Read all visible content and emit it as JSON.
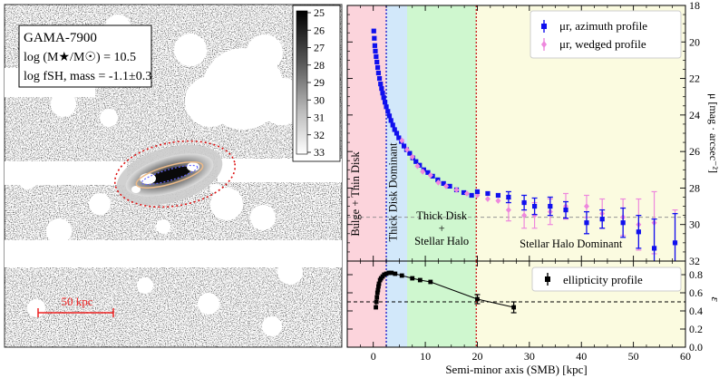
{
  "left_panel": {
    "galaxy_id": "GAMA-7900",
    "mass_label": "log (M★/M☉) = 10.5",
    "fsh_label": "log fSH, mass = -1.1±0.3",
    "scalebar_label": "50 kpc",
    "colorbar_ticks": [
      "25",
      "26",
      "27",
      "28",
      "29",
      "30",
      "31",
      "32",
      "33"
    ]
  },
  "chart_data": [
    {
      "type": "scatter",
      "panel": "surface-brightness-profile",
      "ylabel": "μ [mag · arcsec⁻²]",
      "xlim": [
        -5,
        60
      ],
      "ylim": [
        32,
        18
      ],
      "x_ticks": [
        0,
        10,
        20,
        30,
        40,
        50,
        60
      ],
      "y_ticks": [
        18,
        20,
        22,
        24,
        26,
        28,
        30,
        32
      ],
      "y_tick_labels": [
        "18",
        "20",
        "22",
        "24",
        "26",
        "28",
        "30",
        "32"
      ],
      "legend_position": "top-right",
      "reference_line_y": 29.6,
      "regions": [
        {
          "label": "Bulge + Thin Disk",
          "x0": -5,
          "x1": 2.5,
          "color": "#fcd4dc"
        },
        {
          "label": "Thick Disk Dominant",
          "x0": 2.5,
          "x1": 6.5,
          "color": "#d2e8fa"
        },
        {
          "label": "Thick Disk",
          "label2": "+",
          "label3": "Stellar Halo",
          "x0": 6.5,
          "x1": 19.8,
          "color": "#cff7cf"
        },
        {
          "label": "Stellar Halo Dominant",
          "x0": 19.8,
          "x1": 60,
          "color": "#fbfbe0"
        }
      ],
      "boundaries": [
        {
          "x": 2.5,
          "color": "#2222cc"
        },
        {
          "x": 19.8,
          "color": "#cc2222"
        }
      ],
      "series": [
        {
          "name": "μr, azimuth profile",
          "color": "#1010ee",
          "marker": "square",
          "points": [
            [
              0.1,
              19.4
            ],
            [
              0.2,
              19.8
            ],
            [
              0.3,
              20.2
            ],
            [
              0.4,
              20.5
            ],
            [
              0.55,
              20.8
            ],
            [
              0.7,
              21.1
            ],
            [
              0.85,
              21.4
            ],
            [
              1.0,
              21.7
            ],
            [
              1.2,
              22.0
            ],
            [
              1.4,
              22.3
            ],
            [
              1.6,
              22.55
            ],
            [
              1.8,
              22.8
            ],
            [
              2.0,
              23.05
            ],
            [
              2.25,
              23.3
            ],
            [
              2.5,
              23.55
            ],
            [
              2.8,
              23.8
            ],
            [
              3.1,
              24.05
            ],
            [
              3.4,
              24.3
            ],
            [
              3.75,
              24.55
            ],
            [
              4.1,
              24.8
            ],
            [
              4.5,
              25.0
            ],
            [
              4.9,
              25.25
            ],
            [
              5.4,
              25.45
            ],
            [
              5.9,
              25.7
            ],
            [
              6.4,
              25.9
            ],
            [
              7.0,
              26.1
            ],
            [
              7.6,
              26.35
            ],
            [
              8.2,
              26.55
            ],
            [
              8.9,
              26.75
            ],
            [
              9.7,
              27.0
            ],
            [
              10.5,
              27.15
            ],
            [
              11.4,
              27.35
            ],
            [
              12.4,
              27.55
            ],
            [
              13.5,
              27.75
            ],
            [
              14.7,
              27.9
            ],
            [
              16.0,
              28.1
            ],
            [
              17.4,
              28.25
            ],
            [
              18.9,
              28.4
            ],
            [
              20.5,
              28.6
            ],
            [
              22.2,
              28.7
            ],
            [
              24.0,
              28.85
            ],
            [
              26.0,
              29.0
            ],
            [
              28.2,
              29.15
            ],
            [
              30.6,
              29.2
            ],
            [
              33.2,
              29.35
            ],
            [
              36.0,
              29.45
            ],
            [
              39.0,
              29.6
            ],
            [
              42.2,
              29.55
            ],
            [
              45.5,
              29.7
            ],
            [
              49.0,
              29.75
            ],
            [
              52.6,
              29.85
            ],
            [
              56.4,
              29.95
            ],
            [
              60.3,
              30.05
            ]
          ],
          "visible_points": [
            [
              0.5,
              19.3
            ],
            [
              1.5,
              22.1
            ],
            [
              2.5,
              23.3
            ],
            [
              3.5,
              24.1
            ],
            [
              4.5,
              24.8
            ],
            [
              5.5,
              25.3
            ],
            [
              6.5,
              25.8
            ],
            [
              7.5,
              26.2
            ],
            [
              8.5,
              26.6
            ],
            [
              9.5,
              26.9
            ],
            [
              11,
              27.2
            ],
            [
              12.5,
              27.5
            ],
            [
              14,
              27.7
            ],
            [
              16,
              27.9
            ],
            [
              18,
              28.1
            ],
            [
              20,
              28.2
            ],
            [
              22,
              28.3
            ],
            [
              24,
              28.4
            ],
            [
              26,
              28.5
            ],
            [
              29,
              28.8
            ],
            [
              31,
              29.0
            ],
            [
              34,
              29.0
            ],
            [
              37,
              29.2
            ],
            [
              41,
              29.9
            ],
            [
              44,
              29.7
            ],
            [
              48,
              29.9
            ],
            [
              51,
              30.4
            ],
            [
              54,
              31.3
            ],
            [
              58,
              31.0
            ]
          ],
          "error_bars": [
            [
              26,
              0.3
            ],
            [
              29,
              0.4
            ],
            [
              31,
              0.45
            ],
            [
              34,
              0.5
            ],
            [
              37,
              0.45
            ],
            [
              41,
              0.6
            ],
            [
              44,
              0.5
            ],
            [
              48,
              0.8
            ],
            [
              51,
              0.9
            ],
            [
              54,
              1.6
            ],
            [
              58,
              1.6
            ]
          ]
        },
        {
          "name": "μr, wedged profile",
          "color": "#ee88dd",
          "marker": "diamond",
          "visible_points": [
            [
              5.5,
              25.4
            ],
            [
              6.5,
              25.9
            ],
            [
              7.5,
              26.3
            ],
            [
              8.5,
              26.8
            ],
            [
              9.5,
              27.1
            ],
            [
              11,
              27.3
            ],
            [
              12.5,
              27.7
            ],
            [
              14,
              27.9
            ],
            [
              16,
              28.1
            ],
            [
              18,
              28.3
            ],
            [
              20,
              28.4
            ],
            [
              22,
              28.6
            ],
            [
              24,
              28.7
            ],
            [
              26,
              29.2
            ],
            [
              29,
              29.5
            ],
            [
              31,
              29.5
            ],
            [
              34,
              29.3
            ],
            [
              37,
              29.0
            ],
            [
              41,
              29.0
            ],
            [
              44,
              29.4
            ],
            [
              48,
              29.6
            ],
            [
              51,
              30.0
            ],
            [
              54,
              29.9
            ],
            [
              58,
              31.0
            ]
          ],
          "error_bars": [
            [
              26,
              0.6
            ],
            [
              29,
              0.7
            ],
            [
              31,
              0.7
            ],
            [
              34,
              0.7
            ],
            [
              37,
              0.7
            ],
            [
              41,
              0.6
            ],
            [
              44,
              0.8
            ],
            [
              48,
              1.0
            ],
            [
              51,
              1.4
            ],
            [
              54,
              1.7
            ],
            [
              58,
              1.8
            ]
          ]
        }
      ]
    },
    {
      "type": "line",
      "panel": "ellipticity-profile",
      "xlabel": "Semi-minor axis (SMB) [kpc]",
      "ylabel": "ε",
      "xlim": [
        -5,
        60
      ],
      "ylim": [
        0.0,
        0.95
      ],
      "x_ticks": [
        0,
        10,
        20,
        30,
        40,
        50,
        60
      ],
      "x_tick_labels": [
        "0",
        "10",
        "20",
        "30",
        "40",
        "50",
        "60"
      ],
      "y_ticks": [
        0.0,
        0.2,
        0.4,
        0.6,
        0.8
      ],
      "y_tick_labels": [
        "0.0",
        "0.2",
        "0.4",
        "0.6",
        "0.8"
      ],
      "reference_line_y": 0.5,
      "legend_position": "top-right",
      "series": [
        {
          "name": "ellipticity profile",
          "color": "#000000",
          "marker": "square",
          "points": [
            [
              0.5,
              0.44
            ],
            [
              0.6,
              0.5
            ],
            [
              0.7,
              0.55
            ],
            [
              0.8,
              0.6
            ],
            [
              0.9,
              0.63
            ],
            [
              1.0,
              0.67
            ],
            [
              1.1,
              0.7
            ],
            [
              1.3,
              0.74
            ],
            [
              1.5,
              0.76
            ],
            [
              1.8,
              0.78
            ],
            [
              2.1,
              0.8
            ],
            [
              2.5,
              0.81
            ],
            [
              3.0,
              0.82
            ],
            [
              3.5,
              0.82
            ],
            [
              4.2,
              0.81
            ],
            [
              5.5,
              0.79
            ],
            [
              7.5,
              0.76
            ],
            [
              9,
              0.74
            ],
            [
              11,
              0.72
            ],
            [
              20,
              0.53
            ],
            [
              27,
              0.44
            ]
          ],
          "error_bars": [
            [
              20,
              0.05
            ],
            [
              27,
              0.06
            ]
          ]
        }
      ]
    }
  ]
}
